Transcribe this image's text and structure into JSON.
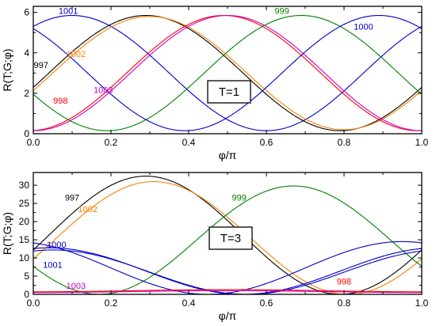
{
  "chart_data": [
    {
      "type": "line",
      "ylabel": "R(T;G;φ)",
      "xlabel": "φ/π",
      "annotation": "T=1",
      "xlim": [
        0,
        1
      ],
      "ylim": [
        0,
        6.3
      ],
      "xticks": [
        "0.0",
        "0.2",
        "0.4",
        "0.6",
        "0.8",
        "1.0"
      ],
      "yticks": [
        "0",
        "2",
        "4",
        "6"
      ],
      "grid": false,
      "series": [
        {
          "name": "1001",
          "color": "#0000cc",
          "func": "cos",
          "mean": 3.0,
          "amp": 2.85,
          "peak": 0.1,
          "label_at": [
            0.09,
            5.92
          ]
        },
        {
          "name": "997",
          "color": "#000000",
          "func": "cos",
          "mean": 3.0,
          "amp": 2.85,
          "peak": 0.29,
          "label_at": [
            0.02,
            3.25
          ]
        },
        {
          "name": "1002",
          "color": "#ff8000",
          "func": "cos",
          "mean": 3.0,
          "amp": 2.8,
          "peak": 0.3,
          "label_at": [
            0.11,
            3.8
          ]
        },
        {
          "name": "998",
          "color": "#ff0000",
          "func": "cos",
          "mean": 3.0,
          "amp": 2.85,
          "peak": 0.49,
          "label_at": [
            0.07,
            1.48
          ]
        },
        {
          "name": "1003",
          "color": "#cc00cc",
          "func": "cos",
          "mean": 3.0,
          "amp": 2.85,
          "peak": 0.5,
          "label_at": [
            0.18,
            2.02
          ]
        },
        {
          "name": "999",
          "color": "#008000",
          "func": "cos",
          "mean": 3.0,
          "amp": 2.85,
          "peak": 0.69,
          "label_at": [
            0.64,
            5.92
          ]
        },
        {
          "name": "1000",
          "color": "#0000cc",
          "func": "cos",
          "mean": 3.0,
          "amp": 2.85,
          "peak": 0.89,
          "label_at": [
            0.85,
            5.15
          ]
        }
      ]
    },
    {
      "type": "line",
      "ylabel": "R(T;G;φ)",
      "xlabel": "φ/π",
      "annotation": "T=3",
      "xlim": [
        0,
        1
      ],
      "ylim": [
        0,
        33.5
      ],
      "xticks": [
        "0.0",
        "0.2",
        "0.4",
        "0.6",
        "0.8",
        "1.0"
      ],
      "yticks": [
        "0",
        "5",
        "10",
        "15",
        "20",
        "25",
        "30"
      ],
      "grid": false,
      "series": [
        {
          "name": "997",
          "color": "#000000",
          "func": "sin2",
          "amp": 32.5,
          "peak": 0.29,
          "label_at": [
            0.1,
            25.8
          ]
        },
        {
          "name": "1002",
          "color": "#ff8000",
          "func": "sin2",
          "amp": 31.0,
          "peak": 0.31,
          "label_at": [
            0.14,
            22.6
          ]
        },
        {
          "name": "999",
          "color": "#008000",
          "func": "sin2",
          "amp": 29.8,
          "peak": 0.67,
          "label_at": [
            0.53,
            25.8
          ]
        },
        {
          "name": "1000",
          "color": "#0000cc",
          "func": "sin2",
          "amp": 14.5,
          "peak": 0.95,
          "label_at": [
            0.06,
            12.8
          ]
        },
        {
          "name": "1001",
          "color": "#0000cc",
          "func": "sin2",
          "amp": 12.8,
          "peak": 0.04,
          "label_at": [
            0.05,
            7.3
          ]
        },
        {
          "name": "",
          "color": "#0000cc",
          "func": "sin2",
          "amp": 12.2,
          "peak": 1.05
        },
        {
          "name": "1003",
          "color": "#cc00cc",
          "func": "cos",
          "mean": 0.75,
          "amp": 0.25,
          "peak": 0.5,
          "label_at": [
            0.11,
            1.5
          ]
        },
        {
          "name": "998",
          "color": "#ff0000",
          "func": "cos",
          "mean": 1.0,
          "amp": 0.3,
          "peak": 0.5,
          "label_at": [
            0.8,
            2.7
          ]
        }
      ]
    }
  ]
}
